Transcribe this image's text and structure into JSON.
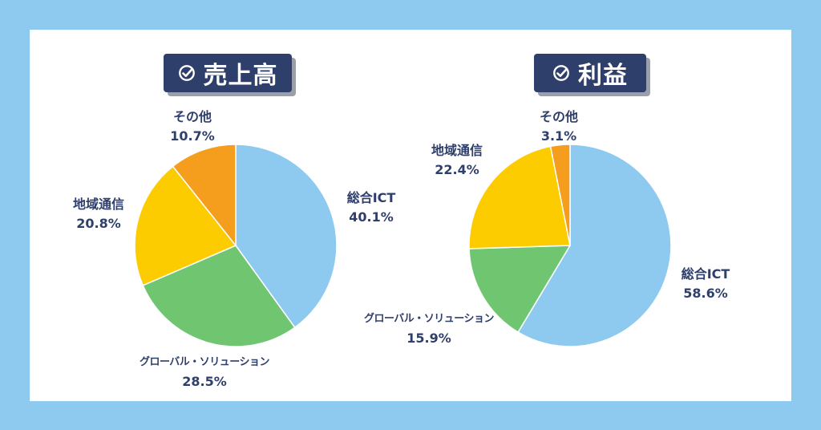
{
  "colors": {
    "background": "#8ec9ef",
    "panel": "#ffffff",
    "badge": "#2f3f6b",
    "label": "#2f3f6b"
  },
  "chart_data": [
    {
      "type": "pie",
      "title": "売上高",
      "categories": [
        "総合ICT",
        "グローバル・ソリューション",
        "地域通信",
        "その他"
      ],
      "values": [
        40.1,
        28.5,
        20.8,
        10.7
      ],
      "value_labels": [
        "40.1%",
        "28.5%",
        "20.8%",
        "10.7%"
      ],
      "colors": [
        "#8ec9ef",
        "#70c670",
        "#fccc00",
        "#f59d1c"
      ]
    },
    {
      "type": "pie",
      "title": "利益",
      "categories": [
        "総合ICT",
        "グローバル・ソリューション",
        "地域通信",
        "その他"
      ],
      "values": [
        58.6,
        15.9,
        22.4,
        3.1
      ],
      "value_labels": [
        "58.6%",
        "15.9%",
        "22.4%",
        "3.1%"
      ],
      "colors": [
        "#8ec9ef",
        "#70c670",
        "#fccc00",
        "#f59d1c"
      ]
    }
  ]
}
